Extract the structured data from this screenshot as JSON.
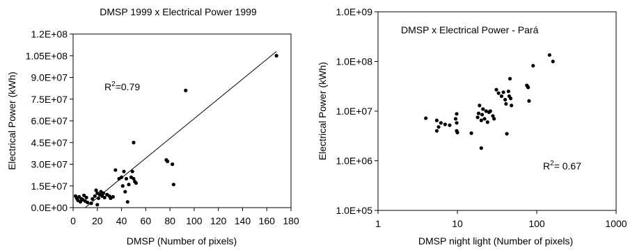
{
  "chart_data": [
    {
      "type": "scatter",
      "title": "DMSP 1999 x Electrical Power  1999",
      "xlabel": "DMSP (Number of pixels)",
      "ylabel": "Electrical Power (kWh)",
      "annotation": {
        "prefix": "R",
        "sup": "2",
        "suffix": "=0.79"
      },
      "xlim": [
        0,
        180
      ],
      "ylim": [
        0,
        120000000
      ],
      "x_ticks": [
        "0",
        "20",
        "40",
        "60",
        "80",
        "100",
        "120",
        "140",
        "160",
        "180"
      ],
      "y_ticks": [
        "0.0E+00",
        "1.5E+07",
        "3.0E+07",
        "4.5E+07",
        "6.0E+07",
        "7.5E+07",
        "9.0E+07",
        "1.05E+08",
        "1.2E+08"
      ],
      "grid": false,
      "trendline": {
        "x": [
          10,
          168
        ],
        "y": [
          0,
          108000000
        ]
      },
      "points": [
        [
          2,
          8000000
        ],
        [
          3,
          6500000
        ],
        [
          4,
          5000000
        ],
        [
          5,
          7500000
        ],
        [
          6,
          4000000
        ],
        [
          7,
          6000000
        ],
        [
          8,
          5500000
        ],
        [
          9,
          8500000
        ],
        [
          10,
          4500000
        ],
        [
          11,
          7000000
        ],
        [
          12,
          3500000
        ],
        [
          15,
          3000000
        ],
        [
          16,
          6000000
        ],
        [
          18,
          8000000
        ],
        [
          19,
          12000000
        ],
        [
          20,
          2000000
        ],
        [
          20,
          10000000
        ],
        [
          21,
          6500000
        ],
        [
          22,
          9000000
        ],
        [
          23,
          11000000
        ],
        [
          24,
          8000000
        ],
        [
          25,
          10000000
        ],
        [
          26,
          7000000
        ],
        [
          28,
          9000000
        ],
        [
          30,
          8000000
        ],
        [
          31,
          6500000
        ],
        [
          33,
          7500000
        ],
        [
          35,
          26000000
        ],
        [
          38,
          20000000
        ],
        [
          40,
          21000000
        ],
        [
          41,
          15000000
        ],
        [
          42,
          25000000
        ],
        [
          43,
          11000000
        ],
        [
          44,
          20000000
        ],
        [
          45,
          4000000
        ],
        [
          46,
          16000000
        ],
        [
          48,
          21000000
        ],
        [
          49,
          25000000
        ],
        [
          50,
          45000000
        ],
        [
          50,
          20000000
        ],
        [
          51,
          18000000
        ],
        [
          52,
          17000000
        ],
        [
          77,
          33000000
        ],
        [
          78,
          32000000
        ],
        [
          82,
          30000000
        ],
        [
          83,
          16000000
        ],
        [
          93,
          81000000
        ],
        [
          168,
          105000000
        ]
      ]
    },
    {
      "type": "scatter",
      "title": "DMSP x Electrical Power  - Pará",
      "xlabel": "DMSP night light  (Number of pixels)",
      "ylabel": "Electrical Power (kWh)",
      "annotation": {
        "prefix": "R",
        "sup": "2",
        "suffix": "= 0.67"
      },
      "x_scale": "log",
      "y_scale": "log",
      "xlim": [
        1,
        1000
      ],
      "ylim": [
        100000,
        1000000000
      ],
      "x_ticks": [
        "1",
        "10",
        "100",
        "1000"
      ],
      "y_ticks": [
        "1.0E+05",
        "1.0E+06",
        "1.0E+07",
        "1.0E+08",
        "1.0E+09"
      ],
      "grid": false,
      "points": [
        [
          4,
          7200000
        ],
        [
          5.5,
          6500000
        ],
        [
          5.5,
          4000000
        ],
        [
          5.8,
          4800000
        ],
        [
          6.2,
          5800000
        ],
        [
          7,
          5400000
        ],
        [
          8,
          5200000
        ],
        [
          9.5,
          7000000
        ],
        [
          9.8,
          8800000
        ],
        [
          9.8,
          5800000
        ],
        [
          9.8,
          4000000
        ],
        [
          10,
          3700000
        ],
        [
          15,
          3600000
        ],
        [
          18,
          7500000
        ],
        [
          18.5,
          9000000
        ],
        [
          19,
          13000000
        ],
        [
          20,
          6500000
        ],
        [
          20,
          1800000
        ],
        [
          20.5,
          8500000
        ],
        [
          21,
          11000000
        ],
        [
          22,
          7000000
        ],
        [
          23,
          10000000
        ],
        [
          24,
          6000000
        ],
        [
          25,
          9500000
        ],
        [
          26,
          10000000
        ],
        [
          28,
          8000000
        ],
        [
          29,
          7000000
        ],
        [
          31,
          27000000
        ],
        [
          33,
          23000000
        ],
        [
          36,
          20000000
        ],
        [
          38,
          24000000
        ],
        [
          40,
          17000000
        ],
        [
          41,
          14000000
        ],
        [
          42,
          3500000
        ],
        [
          44,
          25000000
        ],
        [
          45,
          20000000
        ],
        [
          46,
          45000000
        ],
        [
          47,
          18000000
        ],
        [
          48,
          13000000
        ],
        [
          75,
          33000000
        ],
        [
          77,
          31000000
        ],
        [
          78,
          30000000
        ],
        [
          80,
          16000000
        ],
        [
          90,
          82000000
        ],
        [
          145,
          135000000
        ],
        [
          160,
          100000000
        ]
      ]
    }
  ]
}
